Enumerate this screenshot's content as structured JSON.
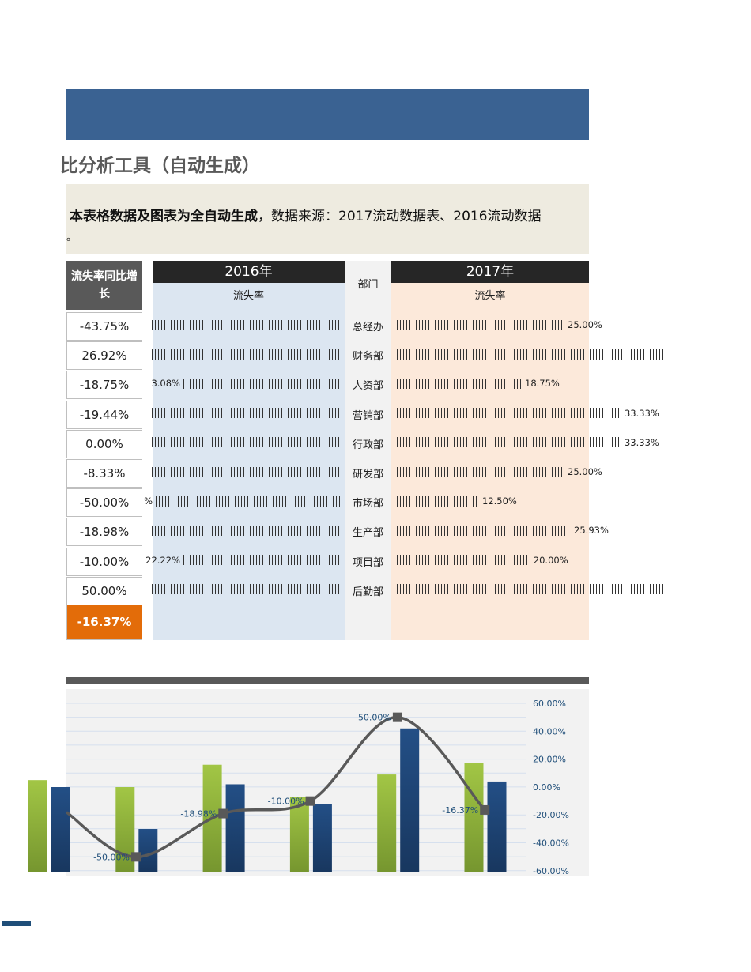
{
  "title": "比分析工具（自动生成）",
  "note": {
    "bold": "本表格数据及图表为全自动生成",
    "rest": "，数据来源：2017流动数据表、2016流动数据",
    "line2": "。"
  },
  "growth": {
    "header": "流失率同比增长",
    "values": [
      "-43.75%",
      "26.92%",
      "-18.75%",
      "-19.44%",
      "0.00%",
      "-8.33%",
      "-50.00%",
      "-18.98%",
      "-10.00%",
      "50.00%"
    ],
    "total": "-16.37%"
  },
  "y2016": {
    "header": "2016年",
    "sub": "流失率",
    "labels": [
      "",
      "",
      "3.08%",
      "",
      "",
      "",
      "%",
      "",
      "22.22%",
      ""
    ]
  },
  "dept": {
    "header": "部门",
    "names": [
      "总经办",
      "财务部",
      "人资部",
      "营销部",
      "行政部",
      "研发部",
      "市场部",
      "生产部",
      "项目部",
      "后勤部"
    ]
  },
  "y2017": {
    "header": "2017年",
    "sub": "流失率",
    "values": [
      25.0,
      40,
      18.75,
      33.33,
      33.33,
      25.0,
      12.5,
      25.93,
      20.0,
      40
    ],
    "labels": [
      "25.00%",
      "",
      "18.75%",
      "33.33%",
      "33.33%",
      "25.00%",
      "12.50%",
      "25.93%",
      "20.00%",
      ""
    ]
  },
  "colors": {
    "banner": "#3a6292",
    "accent": "#e36c09",
    "green": "#8db53a",
    "blue": "#1f4e79",
    "line": "#595959"
  },
  "chart_data": {
    "type": "bar+line",
    "y2_ticks": [
      "60.00%",
      "40.00%",
      "20.00%",
      "0.00%",
      "-20.00%",
      "-40.00%",
      "-60.00%"
    ],
    "y2lim": [
      -60,
      60
    ],
    "grid": true,
    "series": [
      {
        "type": "bar",
        "color": "#8db53a",
        "values": [
          5,
          0,
          16,
          -7,
          9,
          17
        ]
      },
      {
        "type": "bar",
        "color": "#1f4e79",
        "values": [
          0,
          -30,
          2,
          -12,
          42,
          4
        ]
      },
      {
        "type": "line",
        "color": "#595959",
        "values": [
          null,
          -50.0,
          -18.98,
          -10.0,
          50.0,
          -16.37
        ],
        "labels": [
          "",
          "-50.00%",
          "-18.98%",
          "-10.00%",
          "50.00%",
          "-16.37%"
        ]
      }
    ]
  }
}
